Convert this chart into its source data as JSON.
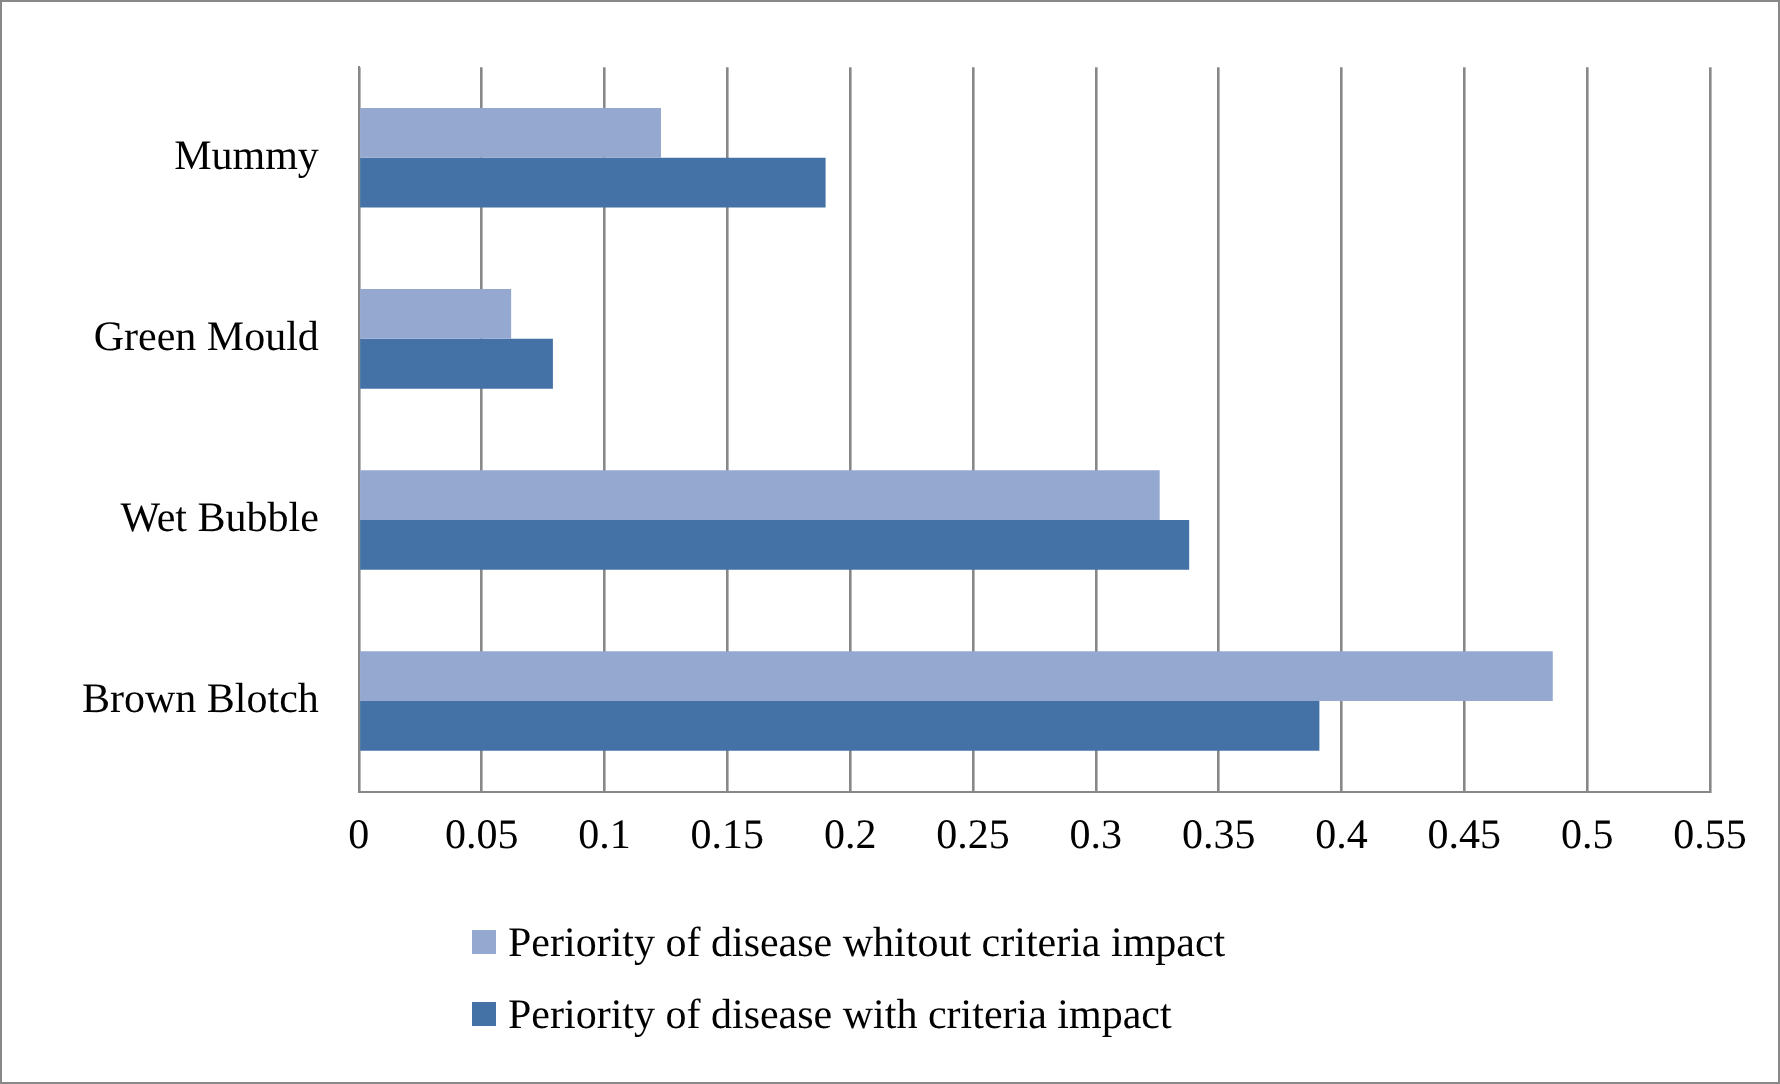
{
  "chart_data": {
    "type": "bar",
    "orientation": "horizontal",
    "categories": [
      "Mummy",
      "Green Mould",
      "Wet Bubble",
      "Brown Blotch"
    ],
    "series": [
      {
        "name": "Periority of disease whitout criteria impact",
        "color": "#95a9d0",
        "values": [
          0.123,
          0.062,
          0.326,
          0.486
        ]
      },
      {
        "name": "Periority of disease with criteria impact",
        "color": "#4472a6",
        "values": [
          0.19,
          0.079,
          0.338,
          0.391
        ]
      }
    ],
    "xlim": [
      0,
      0.55
    ],
    "xticks": [
      0,
      0.05,
      0.1,
      0.15,
      0.2,
      0.25,
      0.3,
      0.35,
      0.4,
      0.45,
      0.5,
      0.55
    ],
    "grid": "x",
    "legend": "bottom"
  }
}
